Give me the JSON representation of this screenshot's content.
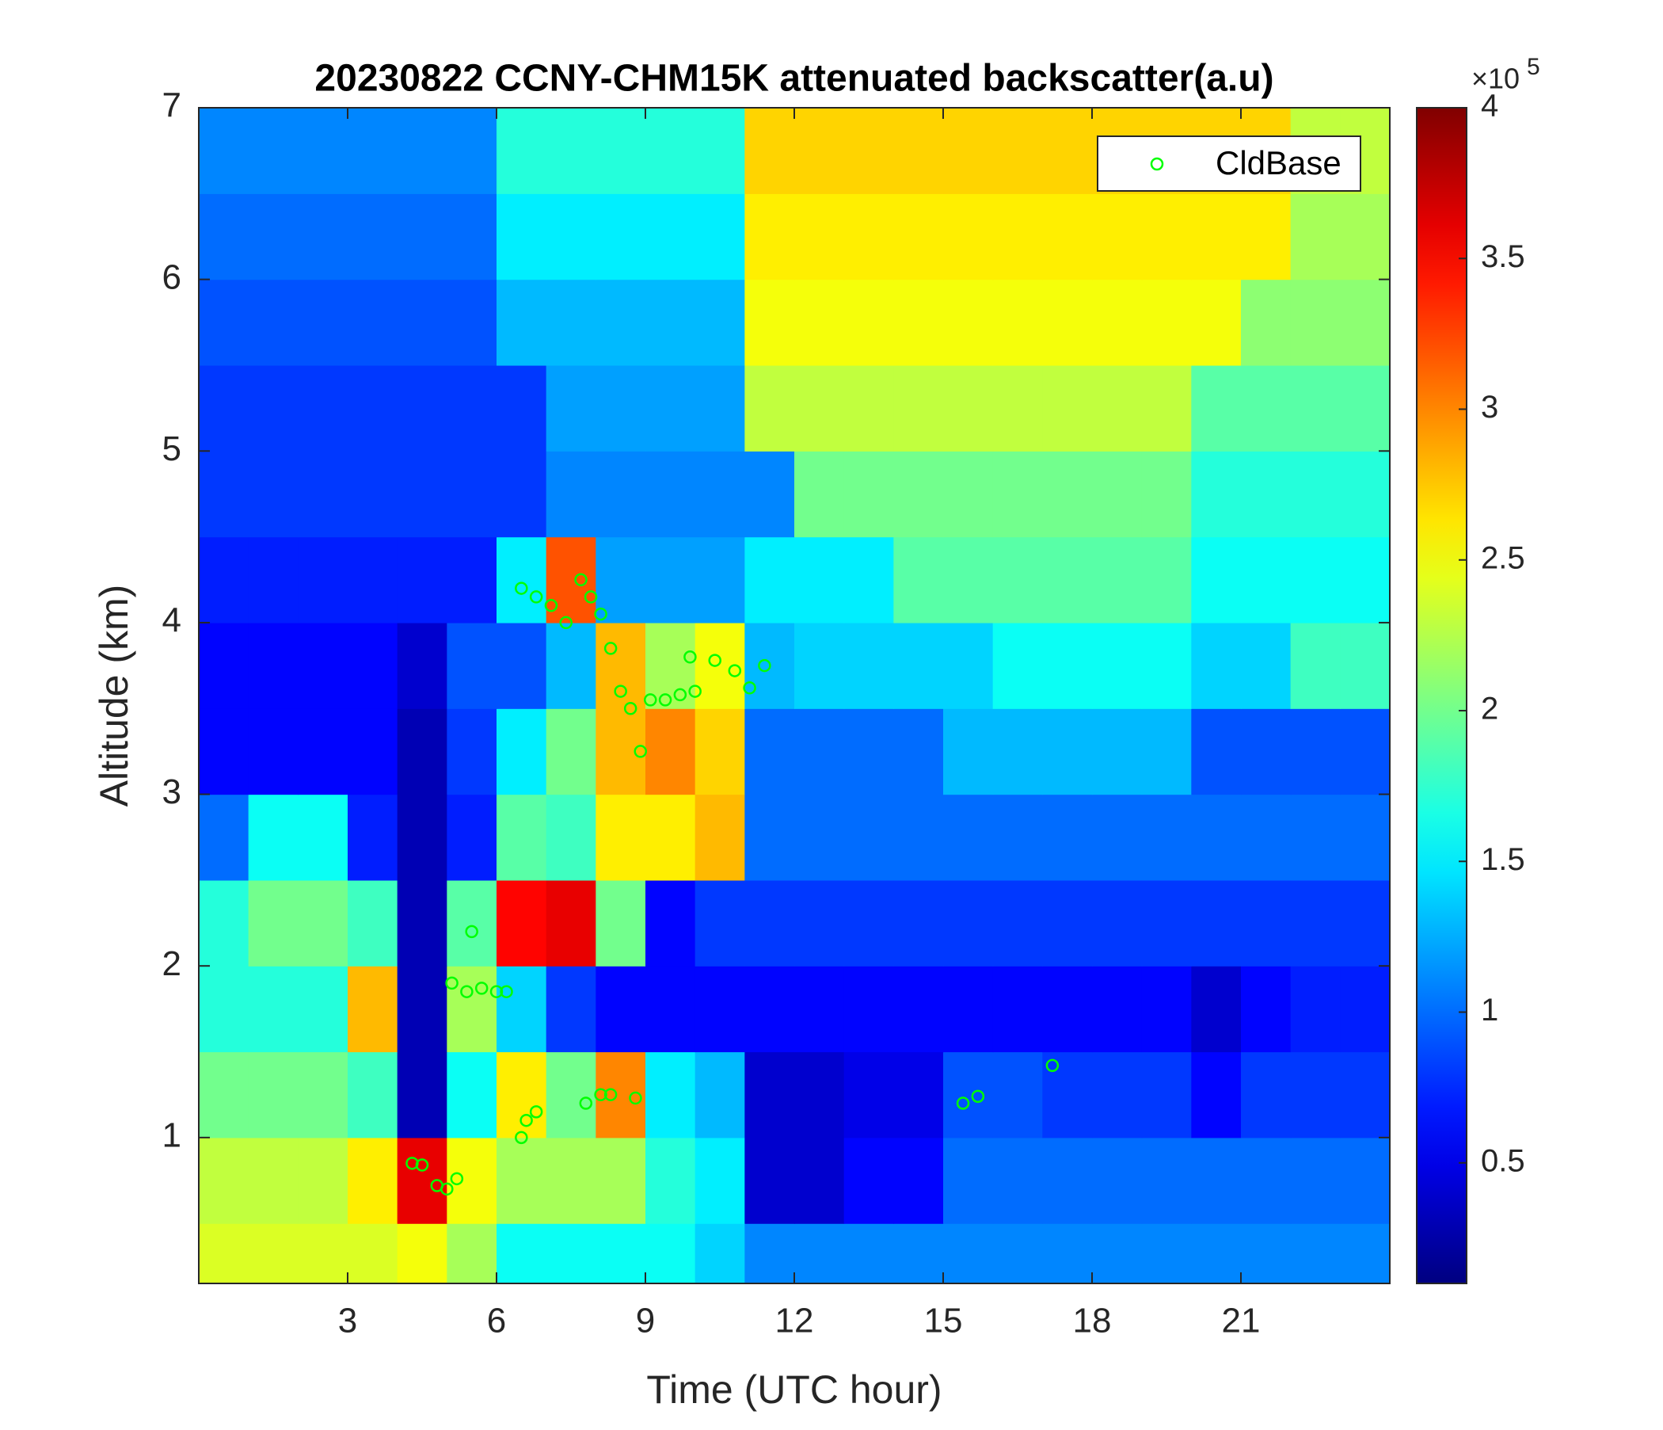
{
  "chart_data": {
    "type": "heatmap",
    "title": "20230822 CCNY-CHM15K attenuated backscatter(a.u)",
    "xlabel": "Time (UTC hour)",
    "ylabel": "Altitude (km)",
    "xlim": [
      0,
      24
    ],
    "ylim": [
      0.15,
      7
    ],
    "xticks": [
      3,
      6,
      9,
      12,
      15,
      18,
      21
    ],
    "yticks": [
      1,
      2,
      3,
      4,
      5,
      6,
      7
    ],
    "x_edges": [
      0,
      1,
      2,
      3,
      4,
      5,
      6,
      7,
      8,
      9,
      10,
      11,
      12,
      13,
      14,
      15,
      16,
      17,
      18,
      19,
      20,
      21,
      22,
      23,
      24
    ],
    "y_edges": [
      0.15,
      0.5,
      1,
      1.5,
      2,
      2.5,
      3,
      3.5,
      4,
      4.5,
      5,
      5.5,
      6,
      6.5,
      7
    ],
    "z": [
      [
        2.4,
        2.4,
        2.4,
        2.4,
        2.5,
        2.2,
        1.6,
        1.6,
        1.6,
        1.6,
        1.4,
        1.1,
        1.1,
        1.1,
        1.1,
        1.1,
        1.1,
        1.1,
        1.1,
        1.1,
        1.1,
        1.1,
        1.1,
        1.1
      ],
      [
        2.3,
        2.3,
        2.3,
        2.6,
        3.6,
        2.5,
        2.2,
        2.2,
        2.2,
        1.7,
        1.5,
        0.4,
        0.4,
        0.6,
        0.6,
        1.0,
        1.0,
        1.0,
        1.0,
        1.0,
        1.0,
        1.0,
        1.0,
        1.0
      ],
      [
        2.0,
        2.0,
        2.0,
        1.8,
        0.3,
        1.6,
        2.6,
        2.0,
        3.0,
        1.5,
        1.3,
        0.4,
        0.4,
        0.5,
        0.5,
        0.9,
        0.9,
        0.8,
        0.8,
        0.8,
        0.6,
        0.8,
        0.8,
        0.8
      ],
      [
        1.7,
        1.7,
        1.7,
        2.8,
        0.3,
        2.2,
        1.4,
        0.8,
        0.6,
        0.6,
        0.6,
        0.6,
        0.6,
        0.6,
        0.6,
        0.6,
        0.6,
        0.6,
        0.6,
        0.6,
        0.4,
        0.6,
        0.7,
        0.7
      ],
      [
        1.7,
        2.0,
        2.0,
        1.8,
        0.3,
        1.9,
        3.5,
        3.6,
        2.0,
        0.6,
        0.8,
        0.8,
        0.8,
        0.8,
        0.8,
        0.8,
        0.8,
        0.8,
        0.8,
        0.8,
        0.8,
        0.8,
        0.8,
        0.8
      ],
      [
        1.0,
        1.6,
        1.6,
        0.7,
        0.3,
        0.7,
        1.9,
        1.8,
        2.6,
        2.6,
        2.8,
        1.0,
        1.0,
        1.0,
        1.0,
        1.0,
        1.0,
        1.0,
        1.0,
        1.0,
        1.0,
        1.0,
        1.0,
        1.0
      ],
      [
        0.6,
        0.6,
        0.6,
        0.6,
        0.3,
        0.8,
        1.5,
        2.0,
        2.8,
        3.0,
        2.7,
        1.0,
        1.0,
        1.0,
        1.0,
        1.3,
        1.3,
        1.3,
        1.3,
        1.3,
        0.9,
        0.9,
        0.9,
        0.9
      ],
      [
        0.6,
        0.6,
        0.6,
        0.6,
        0.4,
        0.9,
        0.9,
        1.3,
        2.8,
        2.2,
        2.5,
        1.3,
        1.4,
        1.4,
        1.4,
        1.4,
        1.6,
        1.6,
        1.6,
        1.6,
        1.4,
        1.4,
        1.8,
        1.8
      ],
      [
        0.7,
        0.7,
        0.7,
        0.7,
        0.7,
        0.7,
        1.5,
        3.2,
        1.2,
        1.2,
        1.2,
        1.5,
        1.5,
        1.5,
        1.9,
        1.9,
        1.9,
        1.9,
        1.9,
        1.9,
        1.6,
        1.6,
        1.6,
        1.6
      ],
      [
        0.8,
        0.8,
        0.8,
        0.8,
        0.8,
        0.8,
        0.8,
        1.1,
        1.1,
        1.1,
        1.1,
        1.1,
        2.0,
        2.0,
        2.0,
        2.0,
        2.0,
        2.0,
        2.0,
        2.0,
        1.7,
        1.7,
        1.7,
        1.7
      ],
      [
        0.8,
        0.8,
        0.8,
        0.8,
        0.8,
        0.8,
        0.8,
        1.2,
        1.2,
        1.2,
        1.2,
        2.3,
        2.3,
        2.3,
        2.3,
        2.3,
        2.3,
        2.3,
        2.3,
        2.3,
        1.9,
        1.9,
        1.9,
        1.9
      ],
      [
        0.9,
        0.9,
        0.9,
        0.9,
        0.9,
        0.9,
        1.3,
        1.3,
        1.3,
        1.3,
        1.3,
        2.5,
        2.5,
        2.5,
        2.5,
        2.5,
        2.5,
        2.5,
        2.5,
        2.5,
        2.5,
        2.1,
        2.1,
        2.1
      ],
      [
        1.0,
        1.0,
        1.0,
        1.0,
        1.0,
        1.0,
        1.5,
        1.5,
        1.5,
        1.5,
        1.5,
        2.6,
        2.6,
        2.6,
        2.6,
        2.6,
        2.6,
        2.6,
        2.6,
        2.6,
        2.6,
        2.6,
        2.2,
        2.2
      ],
      [
        1.1,
        1.1,
        1.1,
        1.1,
        1.1,
        1.1,
        1.7,
        1.7,
        1.7,
        1.7,
        1.7,
        2.7,
        2.7,
        2.7,
        2.7,
        2.7,
        2.7,
        2.7,
        2.7,
        2.7,
        2.7,
        2.7,
        2.3,
        2.3
      ]
    ],
    "colormap": "jet",
    "clim": [
      0.1,
      4
    ],
    "cticks": [
      0.5,
      1,
      1.5,
      2,
      2.5,
      3,
      3.5,
      4
    ],
    "colorbar_multiplier": {
      "base": "×10",
      "exponent": "5"
    },
    "legend": "upper right",
    "series": [
      {
        "name": "CldBase",
        "type": "scatter",
        "color": "#00ff00",
        "x": [
          4.3,
          4.5,
          4.8,
          5.0,
          5.2,
          5.1,
          5.4,
          5.7,
          6.0,
          6.2,
          5.5,
          6.5,
          6.6,
          6.8,
          6.5,
          6.8,
          7.1,
          7.4,
          7.7,
          7.9,
          8.1,
          8.3,
          8.5,
          8.7,
          8.9,
          9.1,
          9.4,
          9.7,
          10.0,
          9.9,
          10.4,
          10.8,
          11.1,
          11.4,
          7.8,
          8.1,
          8.3,
          8.8,
          15.4,
          15.7,
          17.2
        ],
        "y": [
          0.85,
          0.84,
          0.72,
          0.7,
          0.76,
          1.9,
          1.85,
          1.87,
          1.85,
          1.85,
          2.2,
          1.0,
          1.1,
          1.15,
          4.2,
          4.15,
          4.1,
          4.0,
          4.25,
          4.15,
          4.05,
          3.85,
          3.6,
          3.5,
          3.25,
          3.55,
          3.55,
          3.58,
          3.6,
          3.8,
          3.78,
          3.72,
          3.62,
          3.75,
          1.2,
          1.25,
          1.25,
          1.23,
          1.2,
          1.24,
          1.42
        ]
      }
    ]
  }
}
